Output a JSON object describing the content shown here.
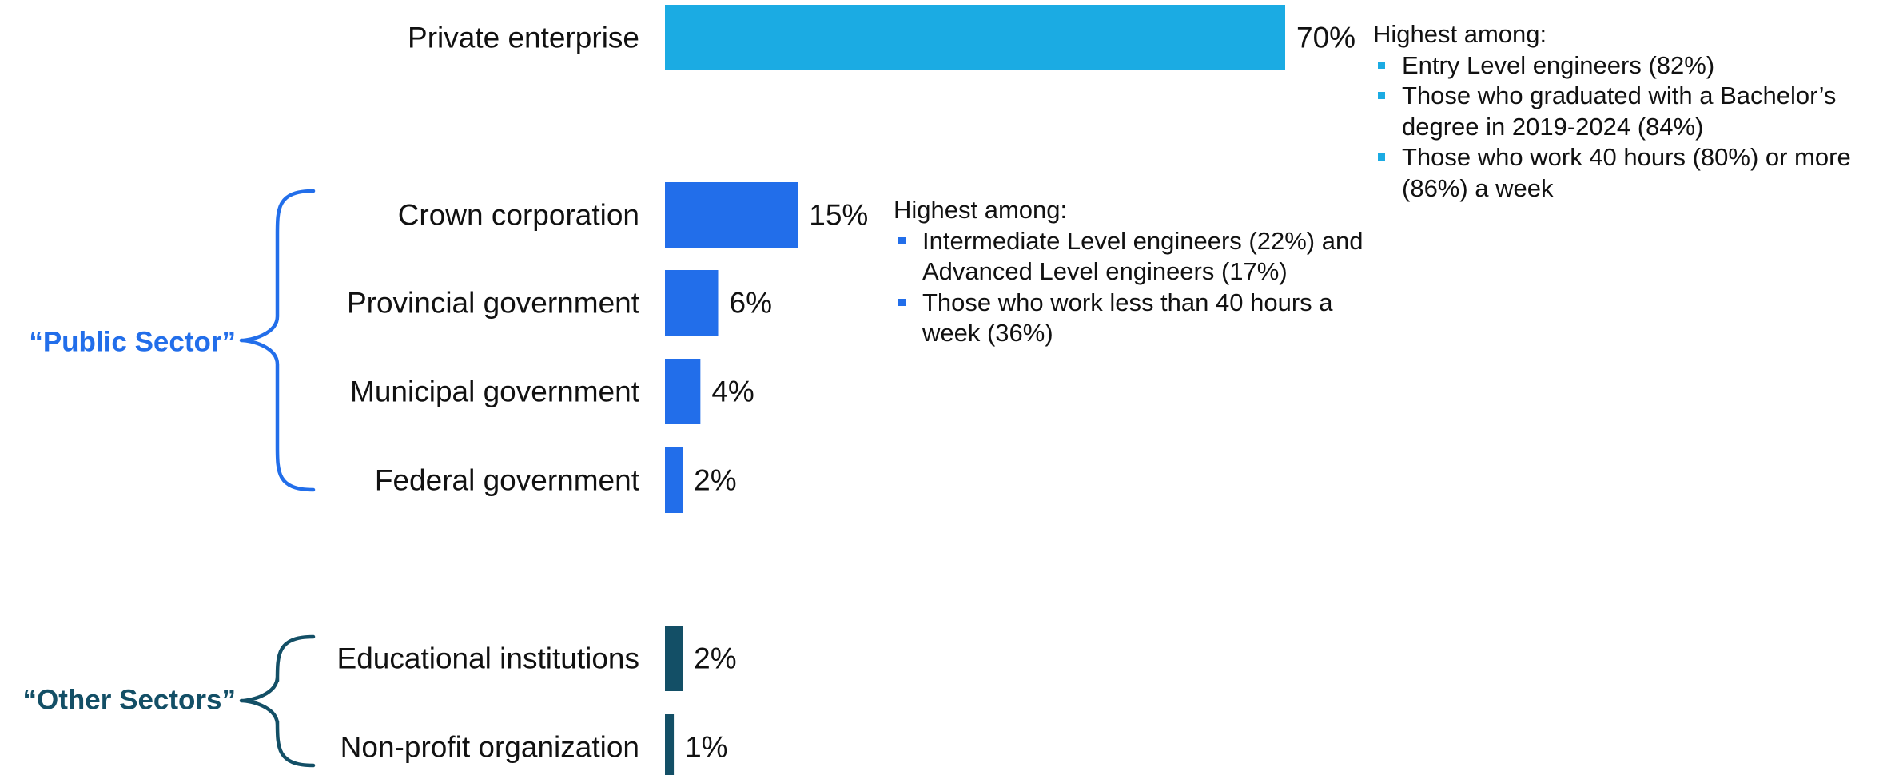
{
  "chart_data": {
    "type": "bar",
    "orientation": "horizontal",
    "title": "",
    "xlabel": "",
    "ylabel": "",
    "xlim": [
      0,
      70
    ],
    "grid": false,
    "value_suffix": "%",
    "categories": [
      "Private enterprise",
      "Crown corporation",
      "Provincial government",
      "Municipal government",
      "Federal government",
      "Educational institutions",
      "Non-profit organization"
    ],
    "values": [
      70,
      15,
      6,
      4,
      2,
      2,
      1
    ],
    "bar_colors": [
      "#1BABE3",
      "#226EEA",
      "#226EEA",
      "#226EEA",
      "#226EEA",
      "#134F66",
      "#134F66"
    ],
    "groups": [
      {
        "label": "“Public Sector”",
        "members": [
          "Crown corporation",
          "Provincial government",
          "Municipal government",
          "Federal government"
        ],
        "color": "#226EEA"
      },
      {
        "label": "“Other Sectors”",
        "members": [
          "Educational institutions",
          "Non-profit organization"
        ],
        "color": "#134F66"
      }
    ],
    "annotations": [
      {
        "attached_to": "Private enterprise",
        "header": "Highest among:",
        "bullet_color": "#1BABE3",
        "bullets": [
          "Entry Level engineers (82%)",
          "Those who graduated with a Bachelor’s degree in 2019-2024 (84%)",
          "Those who work 40 hours (80%) or more (86%) a week"
        ]
      },
      {
        "attached_to": "Crown corporation",
        "header": "Highest among:",
        "bullet_color": "#226EEA",
        "bullets": [
          "Intermediate Level engineers (22%) and Advanced Level engineers (17%)",
          "Those who work less than 40 hours a week (36%)"
        ]
      }
    ]
  }
}
